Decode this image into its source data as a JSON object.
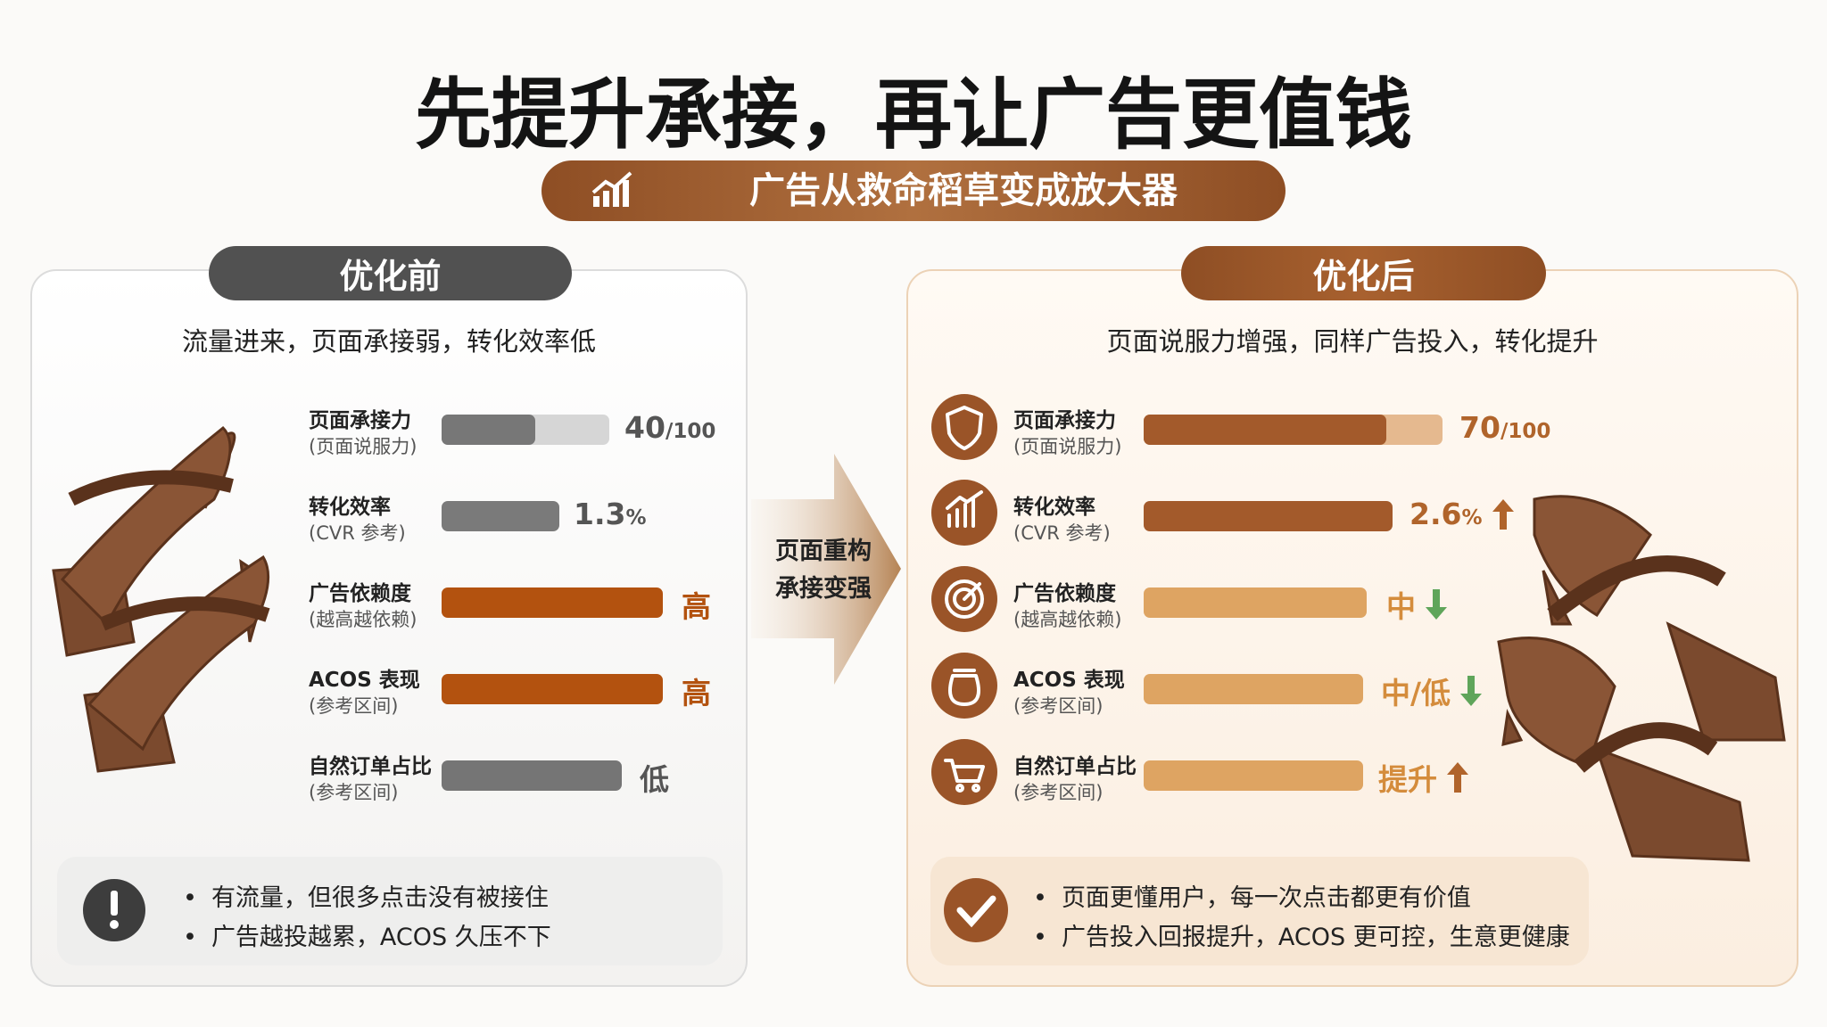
{
  "title": "先提升承接，再让广告更值钱",
  "badge": "广告从救命稻草变成放大器",
  "before": {
    "header": "优化前",
    "subtitle": "流量进来，页面承接弱，转化效率低",
    "metrics": [
      {
        "label": "页面承接力",
        "note": "(页面说服力)",
        "value": "40",
        "unit": "/100"
      },
      {
        "label": "转化效率",
        "note": "(CVR 参考)",
        "value": "1.3",
        "unit": "%"
      },
      {
        "label": "广告依赖度",
        "note": "(越高越依赖)",
        "value": "高"
      },
      {
        "label": "ACOS 表现",
        "note": "(参考区间)",
        "value": "高"
      },
      {
        "label": "自然订单占比",
        "note": "(参考区间)",
        "value": "低"
      }
    ],
    "notes": [
      "有流量，但很多点击没有被接住",
      "广告越投越累，ACOS 久压不下"
    ]
  },
  "arrow": [
    "页面重构",
    "承接变强"
  ],
  "after": {
    "header": "优化后",
    "subtitle": "页面说服力增强，同样广告投入，转化提升",
    "metrics": [
      {
        "label": "页面承接力",
        "note": "(页面说服力)",
        "value": "70",
        "unit": "/100"
      },
      {
        "label": "转化效率",
        "note": "(CVR 参考)",
        "value": "2.6",
        "unit": "%"
      },
      {
        "label": "广告依赖度",
        "note": "(越高越依赖)",
        "value": "中"
      },
      {
        "label": "ACOS 表现",
        "note": "(参考区间)",
        "value": "中/低"
      },
      {
        "label": "自然订单占比",
        "note": "(参考区间)",
        "value": "提升"
      }
    ],
    "notes": [
      "页面更懂用户，每一次点击都更有价值",
      "广告投入回报提升，ACOS 更可控，生意更健康"
    ]
  }
}
